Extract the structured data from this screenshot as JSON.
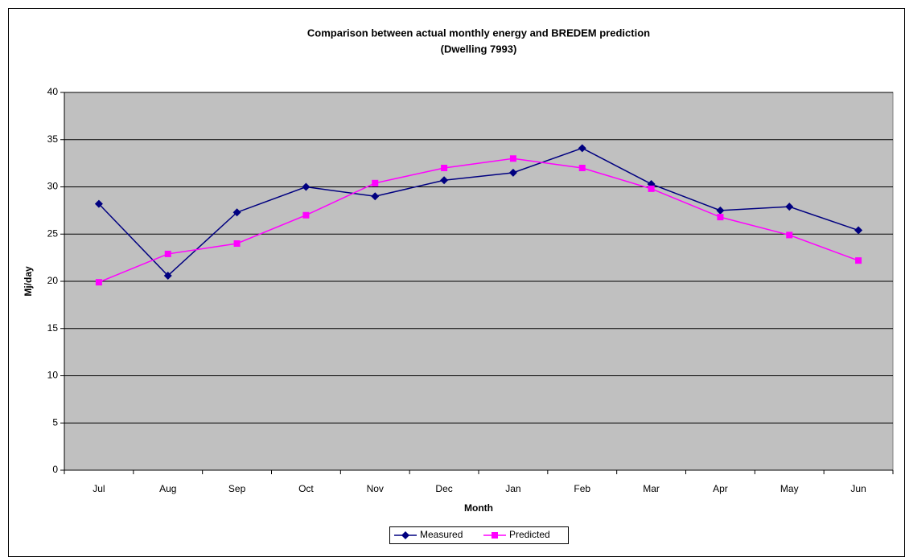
{
  "chart_data": {
    "type": "line",
    "title": "Comparison between actual monthly energy and BREDEM prediction",
    "subtitle": "(Dwelling 7993)",
    "x_label": "Month",
    "y_label": "Mj/day",
    "categories": [
      "Jul",
      "Aug",
      "Sep",
      "Oct",
      "Nov",
      "Dec",
      "Jan",
      "Feb",
      "Mar",
      "Apr",
      "May",
      "Jun"
    ],
    "series": [
      {
        "name": "Measured",
        "color": "#000080",
        "marker": "diamond",
        "values": [
          28.2,
          20.6,
          27.3,
          30.0,
          29.0,
          30.7,
          31.5,
          34.1,
          30.3,
          27.5,
          27.9,
          25.4
        ]
      },
      {
        "name": "Predicted",
        "color": "#ff00ff",
        "marker": "square",
        "values": [
          19.9,
          22.9,
          24.0,
          27.0,
          30.4,
          32.0,
          33.0,
          32.0,
          29.8,
          26.8,
          24.9,
          22.2
        ]
      }
    ],
    "ylim": [
      0,
      40
    ],
    "yticks": [
      0,
      5,
      10,
      15,
      20,
      25,
      30,
      35,
      40
    ],
    "grid": true,
    "legend": "bottom"
  }
}
